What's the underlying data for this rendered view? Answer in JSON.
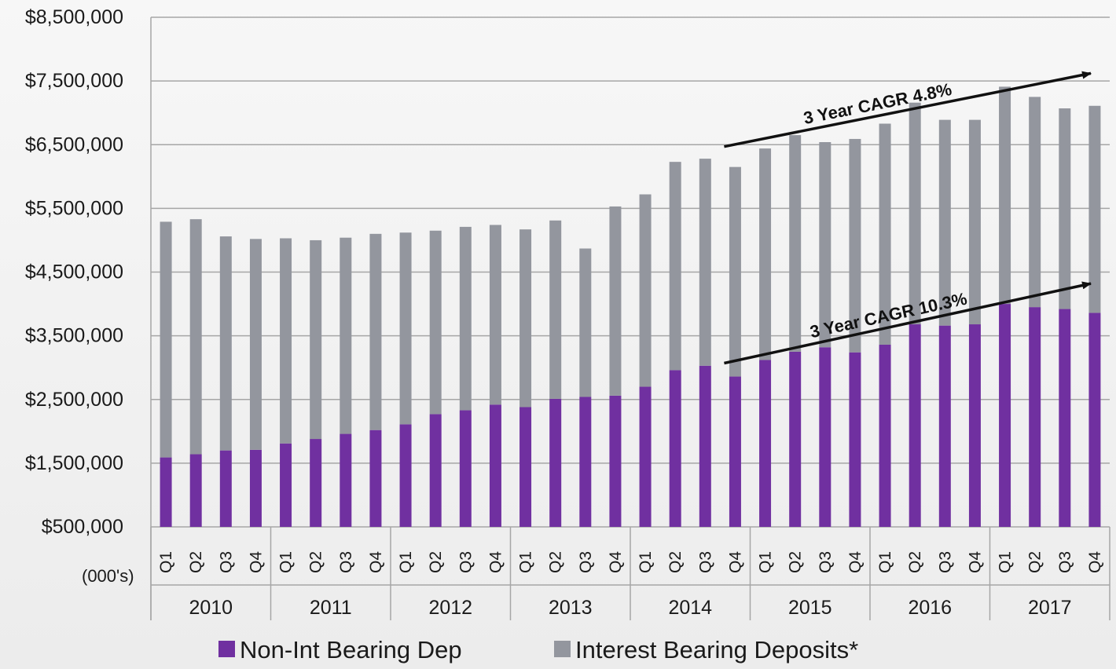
{
  "chart_data": {
    "type": "bar",
    "stacked": true,
    "title": "",
    "xlabel": "",
    "ylabel": "",
    "unit_label": "(000's)",
    "ylim": [
      500000,
      8500000
    ],
    "y_ticks": [
      8500000,
      7500000,
      6500000,
      5500000,
      4500000,
      3500000,
      2500000,
      1500000,
      500000
    ],
    "y_tick_labels": [
      "$8,500,000",
      "$7,500,000",
      "$6,500,000",
      "$5,500,000",
      "$4,500,000",
      "$3,500,000",
      "$2,500,000",
      "$1,500,000",
      "$500,000"
    ],
    "grid": true,
    "legend_position": "bottom",
    "years": [
      "2010",
      "2011",
      "2012",
      "2013",
      "2014",
      "2015",
      "2016",
      "2017"
    ],
    "quarters": [
      "Q1",
      "Q2",
      "Q3",
      "Q4"
    ],
    "categories": [
      "2010 Q1",
      "2010 Q2",
      "2010 Q3",
      "2010 Q4",
      "2011 Q1",
      "2011 Q2",
      "2011 Q3",
      "2011 Q4",
      "2012 Q1",
      "2012 Q2",
      "2012 Q3",
      "2012 Q4",
      "2013 Q1",
      "2013 Q2",
      "2013 Q3",
      "2013 Q4",
      "2014 Q1",
      "2014 Q2",
      "2014 Q3",
      "2014 Q4",
      "2015 Q1",
      "2015 Q2",
      "2015 Q3",
      "2015 Q4",
      "2016 Q1",
      "2016 Q2",
      "2016 Q3",
      "2016 Q4",
      "2017 Q1",
      "2017 Q2",
      "2017 Q3",
      "2017 Q4"
    ],
    "series": [
      {
        "name": "Non-Int Bearing Dep",
        "color": "#7030a0",
        "values": [
          1590000,
          1640000,
          1700000,
          1710000,
          1810000,
          1880000,
          1960000,
          2020000,
          2110000,
          2270000,
          2330000,
          2420000,
          2380000,
          2510000,
          2540000,
          2560000,
          2700000,
          2960000,
          3030000,
          2860000,
          3120000,
          3250000,
          3320000,
          3240000,
          3360000,
          3680000,
          3660000,
          3680000,
          4000000,
          3950000,
          3920000,
          3860000
        ]
      },
      {
        "name": "Interest Bearing Deposits*",
        "color": "#93969e",
        "values": [
          3700000,
          3690000,
          3360000,
          3310000,
          3220000,
          3120000,
          3080000,
          3080000,
          3010000,
          2880000,
          2880000,
          2820000,
          2790000,
          2800000,
          2330000,
          2970000,
          3020000,
          3270000,
          3250000,
          3290000,
          3320000,
          3400000,
          3220000,
          3350000,
          3470000,
          3480000,
          3230000,
          3210000,
          3410000,
          3300000,
          3150000,
          3250000
        ]
      }
    ],
    "annotations": [
      {
        "text": "3 Year CAGR 4.8%",
        "from": [
          "2014 Q4",
          6470000
        ],
        "to": [
          "2017 Q4",
          7620000
        ]
      },
      {
        "text": "3 Year CAGR 10.3%",
        "from": [
          "2014 Q4",
          3070000
        ],
        "to": [
          "2017 Q4",
          4320000
        ]
      }
    ]
  }
}
